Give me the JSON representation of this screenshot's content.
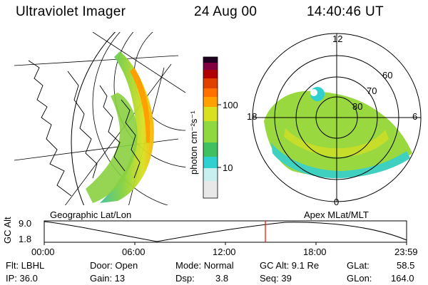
{
  "header": {
    "instrument": "Ultraviolet Imager",
    "date": "24 Aug 00",
    "time": "14:40:46 UT"
  },
  "geo_panel": {
    "label": "Geographic Lat/Lon"
  },
  "polar_panel": {
    "label": "Apex MLat/MLT",
    "mlt_labels": [
      "12",
      "18",
      "6",
      "0"
    ],
    "lat_labels": [
      "60",
      "70",
      "80"
    ]
  },
  "colorbar": {
    "unit_label": "photon cm⁻²s⁻¹",
    "ticks": [
      "100",
      "10"
    ],
    "colors": [
      "#e8e8e8",
      "#c8f0f0",
      "#30d0d0",
      "#40c060",
      "#90d840",
      "#d8e020",
      "#ffa000",
      "#e04000",
      "#b00000",
      "#800040",
      "#200020"
    ]
  },
  "altitude_plot": {
    "ylabel": "GC Alt",
    "yticks": [
      "9.0",
      "1.8"
    ],
    "xticks": [
      "00:00",
      "06:00",
      "12:00",
      "18:00",
      "23:59"
    ],
    "current_time_marker": "14:40"
  },
  "info": {
    "filter": "Flt: LBHL",
    "ip": "IP: 36.0",
    "door": "Door: Open",
    "gain": "Gain: 13",
    "mode": "Mode: Normal",
    "dsp_label": "Dsp:",
    "dsp_value": "3.8",
    "gc_alt": "GC Alt: 9.1 Re",
    "seq": "Seq: 39",
    "glat_label": "GLat:",
    "glat_value": "58.5",
    "glon_label": "GLon:",
    "glon_value": "164.0"
  },
  "accent_colors": {
    "marker": "#ff0000"
  }
}
